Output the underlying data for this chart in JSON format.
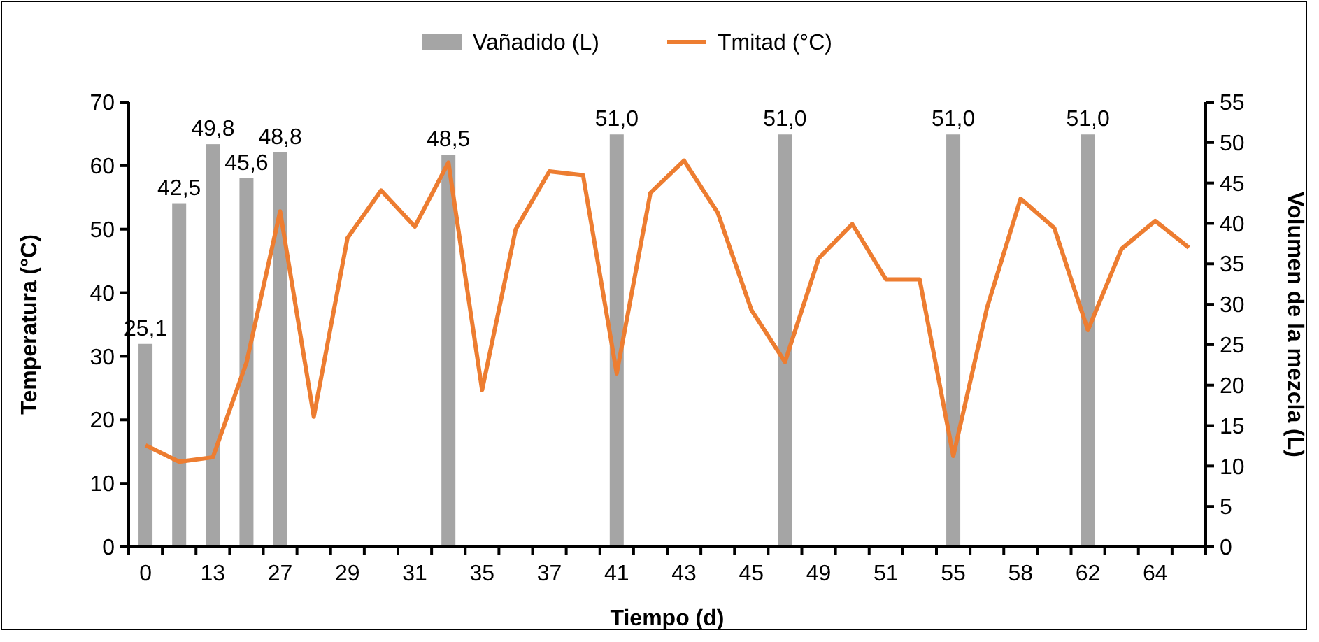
{
  "chart_data": {
    "type": "bar",
    "xlabel": "Tiempo (d)",
    "ylabel": "Temperatura (°C)",
    "y2label": "Volumen de la mezcla (L)",
    "categories": [
      "0",
      null,
      "13",
      null,
      "27",
      null,
      "29",
      null,
      "31",
      null,
      "35",
      null,
      "37",
      null,
      "41",
      null,
      "43",
      null,
      "45",
      null,
      "49",
      null,
      "51",
      null,
      "55",
      null,
      "58",
      null,
      "62",
      null,
      "64",
      null
    ],
    "ylim": [
      0,
      70
    ],
    "yticks": [
      0,
      10,
      20,
      30,
      40,
      50,
      60,
      70
    ],
    "y2lim": [
      0,
      55
    ],
    "y2ticks": [
      0,
      5,
      10,
      15,
      20,
      25,
      30,
      35,
      40,
      45,
      50,
      55
    ],
    "legend": "top",
    "grid": false,
    "series": [
      {
        "name": "Vañadido (L)",
        "type": "bar",
        "axis": "y2",
        "color": "#a5a5a5",
        "values": [
          25.1,
          42.5,
          49.8,
          45.6,
          48.8,
          null,
          null,
          null,
          null,
          48.5,
          null,
          null,
          null,
          null,
          51.0,
          null,
          null,
          null,
          null,
          51.0,
          null,
          null,
          null,
          null,
          51.0,
          null,
          null,
          null,
          51.0,
          null,
          null,
          null
        ],
        "value_labels": [
          "25,1",
          "42,5",
          "49,8",
          "45,6",
          "48,8",
          null,
          null,
          null,
          null,
          "48,5",
          null,
          null,
          null,
          null,
          "51,0",
          null,
          null,
          null,
          null,
          "51,0",
          null,
          null,
          null,
          null,
          "51,0",
          null,
          null,
          null,
          "51,0",
          null,
          null,
          null
        ]
      },
      {
        "name": "Tmitad (°C)",
        "type": "line",
        "axis": "y",
        "color": "#ed7d31",
        "values": [
          16,
          13.4,
          14.1,
          29,
          52.8,
          20.5,
          48.6,
          56.1,
          50.4,
          60.5,
          24.7,
          50,
          59.1,
          58.5,
          27.3,
          55.7,
          60.8,
          52.6,
          37.3,
          29.1,
          45.4,
          50.8,
          42.1,
          42.1,
          14.3,
          37.6,
          54.8,
          50.2,
          34.1,
          46.9,
          51.3,
          47.1
        ]
      }
    ]
  }
}
